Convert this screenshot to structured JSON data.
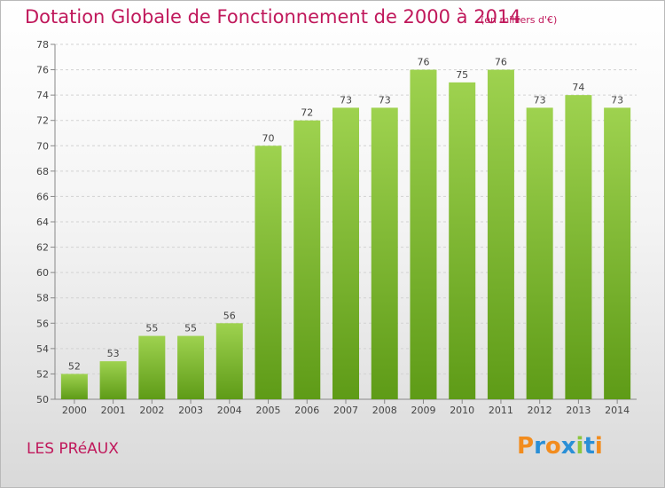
{
  "header": {
    "title": "Dotation Globale de Fonctionnement de 2000 à 2014",
    "unit": "(en milliers d'€)"
  },
  "footer": {
    "place": "LES PRéAUX",
    "logo": "Proxiti"
  },
  "colors": {
    "title": "#c0185b",
    "bar_top": "#9ed24f",
    "bar_bottom": "#5e9b17",
    "logo_letters": [
      "#f28c1e",
      "#2a8fd6",
      "#f28c1e",
      "#2a8fd6",
      "#8cc63f",
      "#2a8fd6",
      "#f28c1e"
    ]
  },
  "chart_data": {
    "type": "bar",
    "title": "Dotation Globale de Fonctionnement de 2000 à 2014",
    "subtitle": "(en milliers d'€)",
    "xlabel": "",
    "ylabel": "",
    "categories": [
      "2000",
      "2001",
      "2002",
      "2003",
      "2004",
      "2005",
      "2006",
      "2007",
      "2008",
      "2009",
      "2010",
      "2011",
      "2012",
      "2013",
      "2014"
    ],
    "values": [
      52,
      53,
      55,
      55,
      56,
      70,
      72,
      73,
      73,
      76,
      75,
      76,
      73,
      74,
      73
    ],
    "ylim": [
      50,
      78
    ],
    "yticks": [
      50,
      52,
      54,
      56,
      58,
      60,
      62,
      64,
      66,
      68,
      70,
      72,
      74,
      76,
      78
    ],
    "grid": true,
    "data_labels": true
  }
}
